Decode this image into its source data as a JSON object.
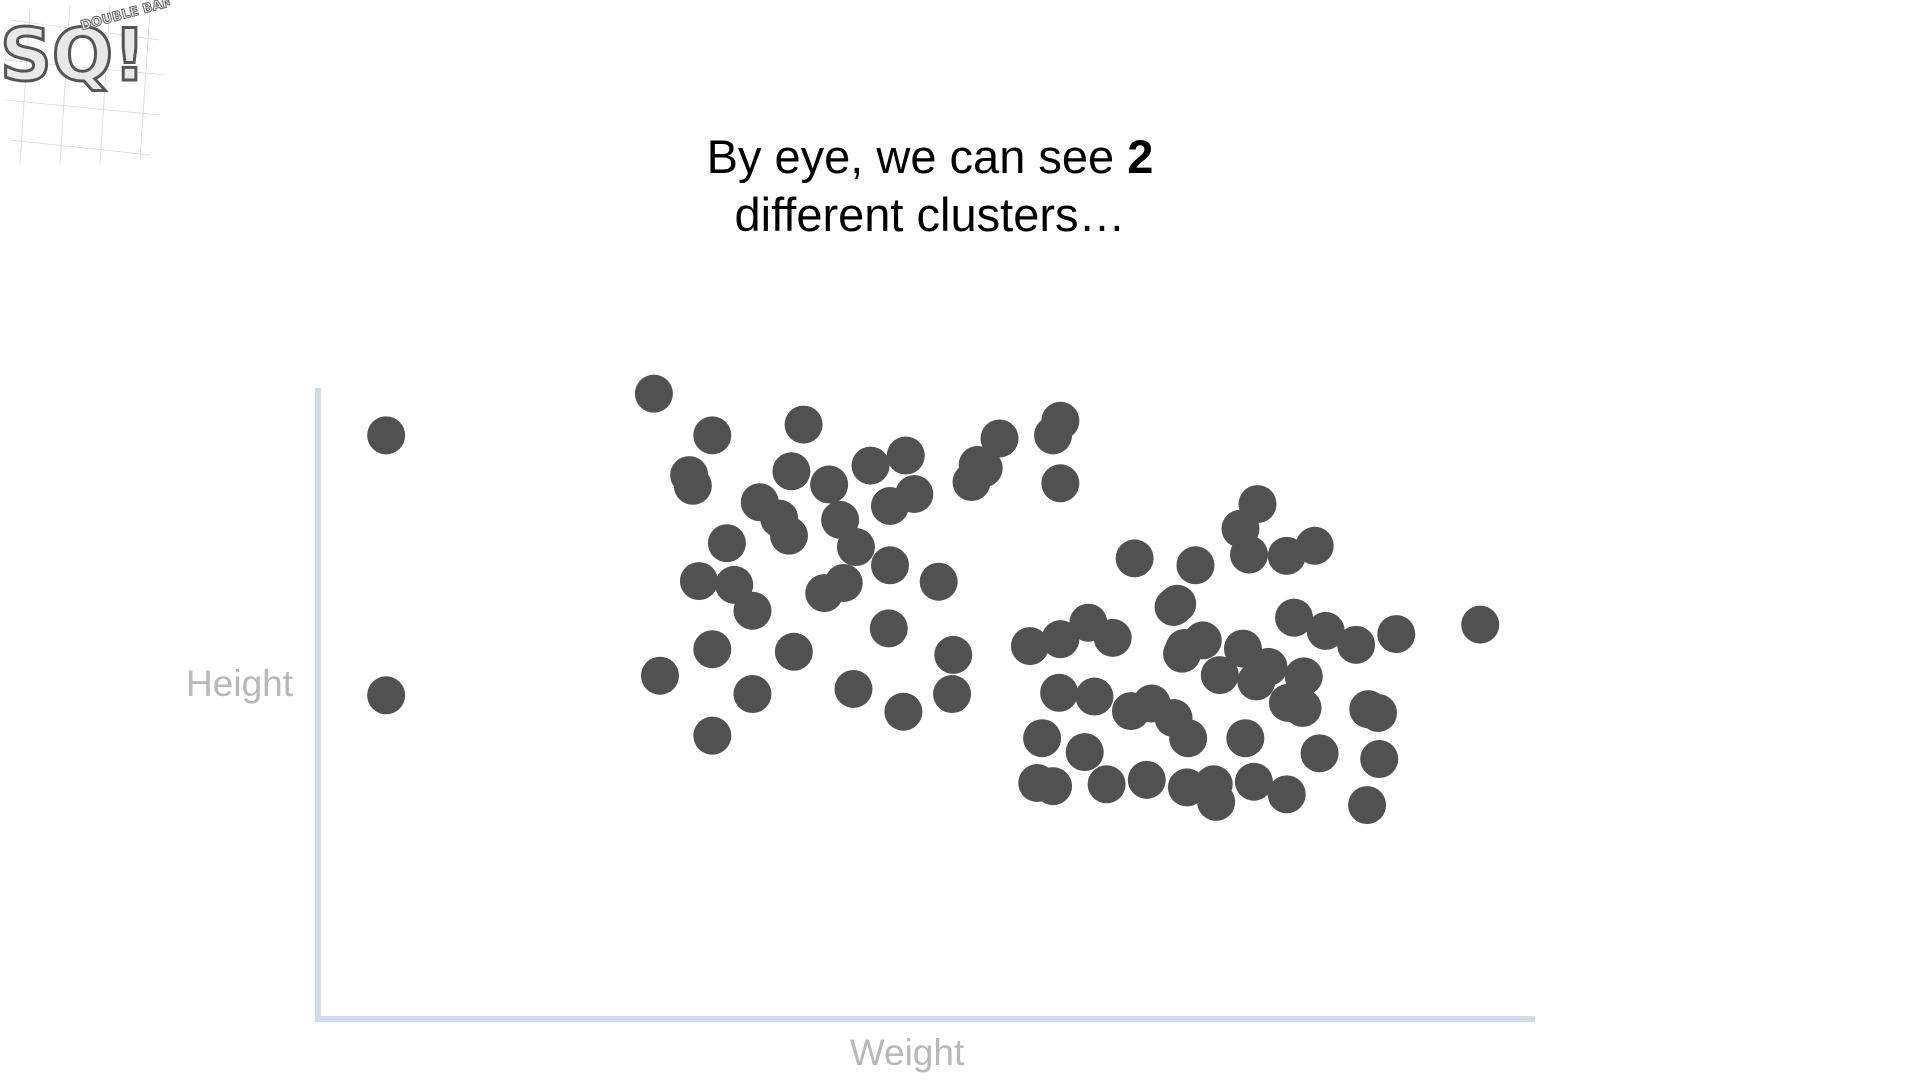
{
  "caption": {
    "line1_pre": "By eye, we can see ",
    "line1_bold": "2",
    "line2": "different clusters…"
  },
  "logo": {
    "letters": "SQ!",
    "text": "DOUBLE BAM!!!"
  },
  "colors": {
    "point": "#515151",
    "axis": "#cfdcec",
    "axis_label": "#b8b8b8"
  },
  "chart_data": {
    "type": "scatter",
    "title": "",
    "xlabel": "Weight",
    "ylabel": "Height",
    "xlim": [
      0,
      100
    ],
    "ylim": [
      0,
      100
    ],
    "grid": false,
    "series": [
      {
        "x": [
          5.6,
          27.6,
          32.4,
          39.9,
          30.5,
          36.3,
          42.9,
          48.3,
          54.2,
          56.0,
          60.4,
          61.0,
          38.9,
          42.0,
          45.4,
          49.0,
          30.8,
          37.9,
          33.6,
          38.7,
          44.2,
          47.0,
          53.7,
          54.7,
          61.0,
          31.3,
          34.2,
          41.6,
          43.2,
          51.0,
          47.0,
          35.7,
          32.4,
          39.1,
          52.2,
          61.0,
          28.1,
          35.7,
          44.0,
          48.1,
          52.1,
          58.5,
          46.9,
          5.6,
          32.4,
          95.5,
          75.8,
          67.1,
          72.1,
          77.2,
          81.9,
          70.6,
          70.3,
          71.2,
          74.1,
          76.0,
          78.1,
          79.7,
          82.8,
          86.3,
          76.5,
          79.6,
          80.2,
          88.6,
          60.9,
          63.8,
          65.3,
          63.3,
          71.0,
          72.7,
          77.1,
          81.0,
          85.3,
          87.1,
          59.5,
          59.1,
          63.0,
          66.8,
          68.5,
          70.3,
          71.5,
          73.6,
          76.2,
          80.9,
          82.3,
          87.2,
          60.4,
          64.8,
          68.1,
          71.4,
          73.8,
          76.9,
          79.6,
          86.2
        ]
      }
    ]
  },
  "chart_data_y": [
    92.5,
    99.1,
    92.5,
    94.2,
    86.2,
    81.9,
    79.1,
    89.3,
    87.8,
    92.0,
    92.5,
    94.8,
    86.8,
    84.7,
    87.7,
    83.2,
    84.5,
    79.3,
    75.4,
    76.6,
    74.8,
    81.3,
    85.1,
    87.3,
    84.9,
    69.4,
    68.8,
    67.5,
    69.1,
    69.3,
    71.9,
    64.7,
    58.6,
    58.2,
    57.7,
    60.2,
    54.4,
    51.5,
    52.3,
    48.7,
    51.5,
    59.1,
    61.9,
    51.3,
    44.9,
    62.5,
    77.7,
    73.0,
    71.9,
    81.6,
    75.0,
    65.8,
    65.3,
    58.8,
    54.5,
    58.7,
    55.8,
    50.1,
    61.5,
    49.1,
    73.6,
    73.4,
    63.6,
    61.0,
    51.7,
    51.1,
    60.4,
    62.8,
    57.9,
    60.0,
    53.5,
    54.3,
    59.3,
    48.5,
    44.5,
    37.4,
    42.3,
    48.8,
    50.0,
    47.7,
    44.5,
    37.2,
    44.5,
    49.3,
    42.1,
    41.2,
    36.9,
    37.2,
    37.9,
    36.7,
    34.4,
    37.6,
    35.6,
    33.9
  ]
}
